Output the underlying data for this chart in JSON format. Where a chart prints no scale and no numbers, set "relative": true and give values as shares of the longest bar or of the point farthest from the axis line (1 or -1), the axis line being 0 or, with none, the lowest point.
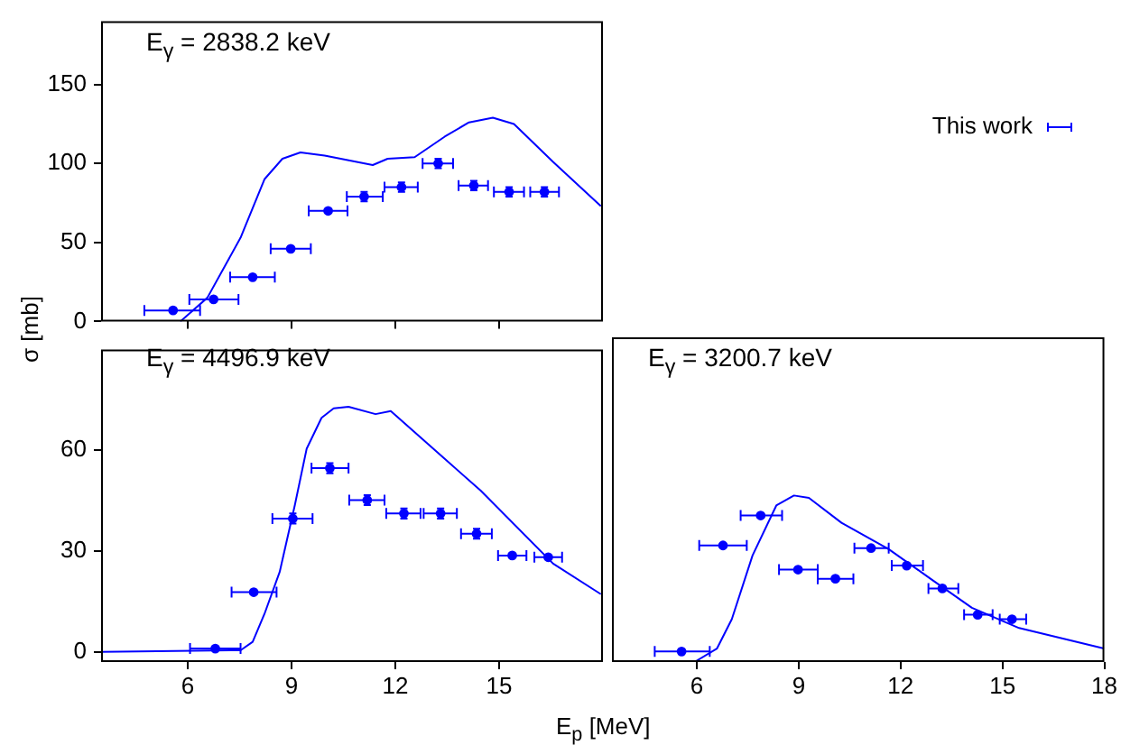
{
  "chart_data": [
    {
      "type": "scatter",
      "title": "E$_{γ}$ = 2838.2 keV",
      "xlim": [
        3.5,
        18
      ],
      "xticks": [
        6,
        9,
        12,
        15
      ],
      "ylim": [
        0,
        190
      ],
      "yticks": [
        0,
        50,
        100,
        150
      ],
      "tick_labels": "y",
      "grid": false,
      "legend": "right",
      "series": [
        {
          "name": "This work",
          "type": "scatter",
          "marker": "circle",
          "color": "#0000ff",
          "x": [
            5.58,
            6.75,
            7.88,
            8.98,
            10.06,
            11.1,
            12.18,
            13.24,
            14.27,
            15.29,
            16.31
          ],
          "values": [
            7,
            14,
            28,
            46,
            70,
            79,
            85,
            100,
            86,
            82,
            82
          ],
          "errors": [
            null,
            null,
            null,
            null,
            null,
            3,
            3,
            3,
            3,
            3,
            3
          ],
          "xerrors": [
            [
              4.75,
              6.36
            ],
            [
              6.05,
              7.47
            ],
            [
              7.23,
              8.52
            ],
            [
              8.4,
              9.56
            ],
            [
              9.5,
              10.62
            ],
            [
              10.6,
              11.64
            ],
            [
              11.69,
              12.65
            ],
            [
              12.79,
              13.67
            ],
            [
              13.83,
              14.68
            ],
            [
              14.85,
              15.72
            ],
            [
              15.9,
              16.73
            ]
          ]
        },
        {
          "type": "line",
          "marker": "none",
          "color": "#0000ff",
          "x": [
            5.79,
            6.57,
            7.53,
            8.22,
            8.74,
            9.26,
            9.96,
            11.35,
            11.78,
            12.56,
            13.43,
            14.13,
            14.82,
            15.43,
            16.56,
            17.94
          ],
          "values": [
            0,
            15,
            53,
            90,
            103,
            107,
            105,
            99,
            103,
            104,
            117,
            126,
            129,
            125,
            101,
            73
          ]
        }
      ]
    },
    {
      "type": "scatter",
      "title": "E$_{γ}$ = 4496.9 keV",
      "xlabel": "E$_{p}$ [MeV]",
      "ylabel": "σ [mb]",
      "xlim": [
        3.5,
        18
      ],
      "xticks": [
        6,
        9,
        12,
        15
      ],
      "ylim": [
        -3,
        90
      ],
      "yticks": [
        0,
        30,
        60
      ],
      "grid": false,
      "series": [
        {
          "type": "scatter",
          "marker": "circle",
          "color": "#0000ff",
          "x": [
            6.8,
            7.91,
            9.04,
            10.11,
            11.19,
            12.25,
            13.31,
            14.35,
            15.38,
            16.42
          ],
          "values": [
            1,
            17.8,
            39.7,
            54.7,
            45.2,
            41.2,
            41.2,
            35.2,
            28.7,
            28.2
          ],
          "errors": [
            null,
            null,
            1.5,
            1.5,
            1.5,
            1.5,
            1.5,
            1.5,
            null,
            null
          ],
          "xerrors": [
            [
              6.07,
              7.53
            ],
            [
              7.27,
              8.57
            ],
            [
              8.45,
              9.61
            ],
            [
              9.58,
              10.65
            ],
            [
              10.67,
              11.69
            ],
            [
              11.74,
              12.73
            ],
            [
              12.82,
              13.78
            ],
            [
              13.9,
              14.79
            ],
            [
              14.97,
              15.79
            ],
            [
              16.02,
              16.82
            ]
          ]
        },
        {
          "type": "line",
          "marker": "none",
          "color": "#0000ff",
          "x": [
            3.5,
            7.53,
            7.88,
            8.22,
            8.66,
            9.1,
            9.44,
            9.87,
            10.22,
            10.65,
            11.43,
            11.87,
            14.47,
            16.56,
            17.94
          ],
          "values": [
            0,
            0.5,
            3,
            11.3,
            23.8,
            43.8,
            60.5,
            69.7,
            72.5,
            73,
            70.8,
            71.7,
            48,
            26.3,
            17.2
          ]
        }
      ]
    },
    {
      "type": "scatter",
      "title": "E$_{γ}$ = 3200.7 keV",
      "relative": true,
      "xlim": [
        3.5,
        18
      ],
      "xticks": [
        6,
        9,
        12,
        15,
        18
      ],
      "grid": false,
      "series": [
        {
          "type": "scatter",
          "marker": "circle",
          "color": "#0000ff",
          "x": [
            5.55,
            6.77,
            7.88,
            8.98,
            10.08,
            11.13,
            12.18,
            13.23,
            14.27,
            15.28
          ],
          "values": [
            0.063,
            0.7,
            0.88,
            0.555,
            0.5,
            0.684,
            0.579,
            0.442,
            0.284,
            0.257
          ],
          "xerrors": [
            [
              4.76,
              6.38
            ],
            [
              6.07,
              7.47
            ],
            [
              7.29,
              8.51
            ],
            [
              8.42,
              9.56
            ],
            [
              9.56,
              10.61
            ],
            [
              10.64,
              11.65
            ],
            [
              11.74,
              12.66
            ],
            [
              12.82,
              13.7
            ],
            [
              13.87,
              14.71
            ],
            [
              14.92,
              15.7
            ]
          ]
        },
        {
          "type": "line",
          "marker": "none",
          "color": "#0000ff",
          "x": [
            5.93,
            6.59,
            7.03,
            7.64,
            8.34,
            8.86,
            9.3,
            10.26,
            11.65,
            12.87,
            14.1,
            15.49,
            17.99
          ],
          "values": [
            0,
            0.08,
            0.257,
            0.64,
            0.94,
            1,
            0.986,
            0.836,
            0.678,
            0.502,
            0.326,
            0.204,
            0.081
          ]
        }
      ]
    }
  ]
}
